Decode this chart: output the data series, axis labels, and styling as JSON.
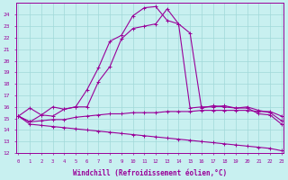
{
  "xlabel": "Windchill (Refroidissement éolien,°C)",
  "background_color": "#c8f0f0",
  "grid_color": "#a0d8d8",
  "line_color": "#990099",
  "x_ticks": [
    0,
    1,
    2,
    3,
    4,
    5,
    6,
    7,
    8,
    9,
    10,
    11,
    12,
    13,
    14,
    15,
    16,
    17,
    18,
    19,
    20,
    21,
    22,
    23
  ],
  "ylim": [
    12,
    25
  ],
  "y_ticks": [
    12,
    13,
    14,
    15,
    16,
    17,
    18,
    19,
    20,
    21,
    22,
    23,
    24
  ],
  "xlim": [
    0,
    23
  ],
  "series": [
    [
      15.2,
      15.9,
      15.3,
      16.0,
      15.8,
      16.0,
      17.5,
      19.4,
      21.7,
      22.2,
      23.9,
      24.6,
      24.7,
      23.5,
      23.2,
      22.4,
      15.9,
      16.1,
      16.0,
      15.9,
      16.0,
      15.7,
      15.5,
      14.8
    ],
    [
      15.2,
      14.7,
      15.3,
      15.2,
      15.8,
      16.0,
      16.0,
      18.2,
      19.5,
      21.9,
      22.8,
      23.0,
      23.2,
      24.5,
      23.2,
      15.9,
      16.0,
      16.0,
      16.1,
      15.9,
      15.9,
      15.4,
      15.3,
      14.5
    ],
    [
      15.2,
      14.7,
      14.8,
      14.9,
      14.9,
      15.1,
      15.2,
      15.3,
      15.4,
      15.4,
      15.5,
      15.5,
      15.5,
      15.6,
      15.6,
      15.6,
      15.7,
      15.7,
      15.7,
      15.7,
      15.7,
      15.6,
      15.6,
      15.2
    ],
    [
      15.2,
      14.5,
      14.4,
      14.3,
      14.2,
      14.1,
      14.0,
      13.9,
      13.8,
      13.7,
      13.6,
      13.5,
      13.4,
      13.3,
      13.2,
      13.1,
      13.0,
      12.9,
      12.8,
      12.7,
      12.6,
      12.5,
      12.4,
      12.2
    ]
  ]
}
